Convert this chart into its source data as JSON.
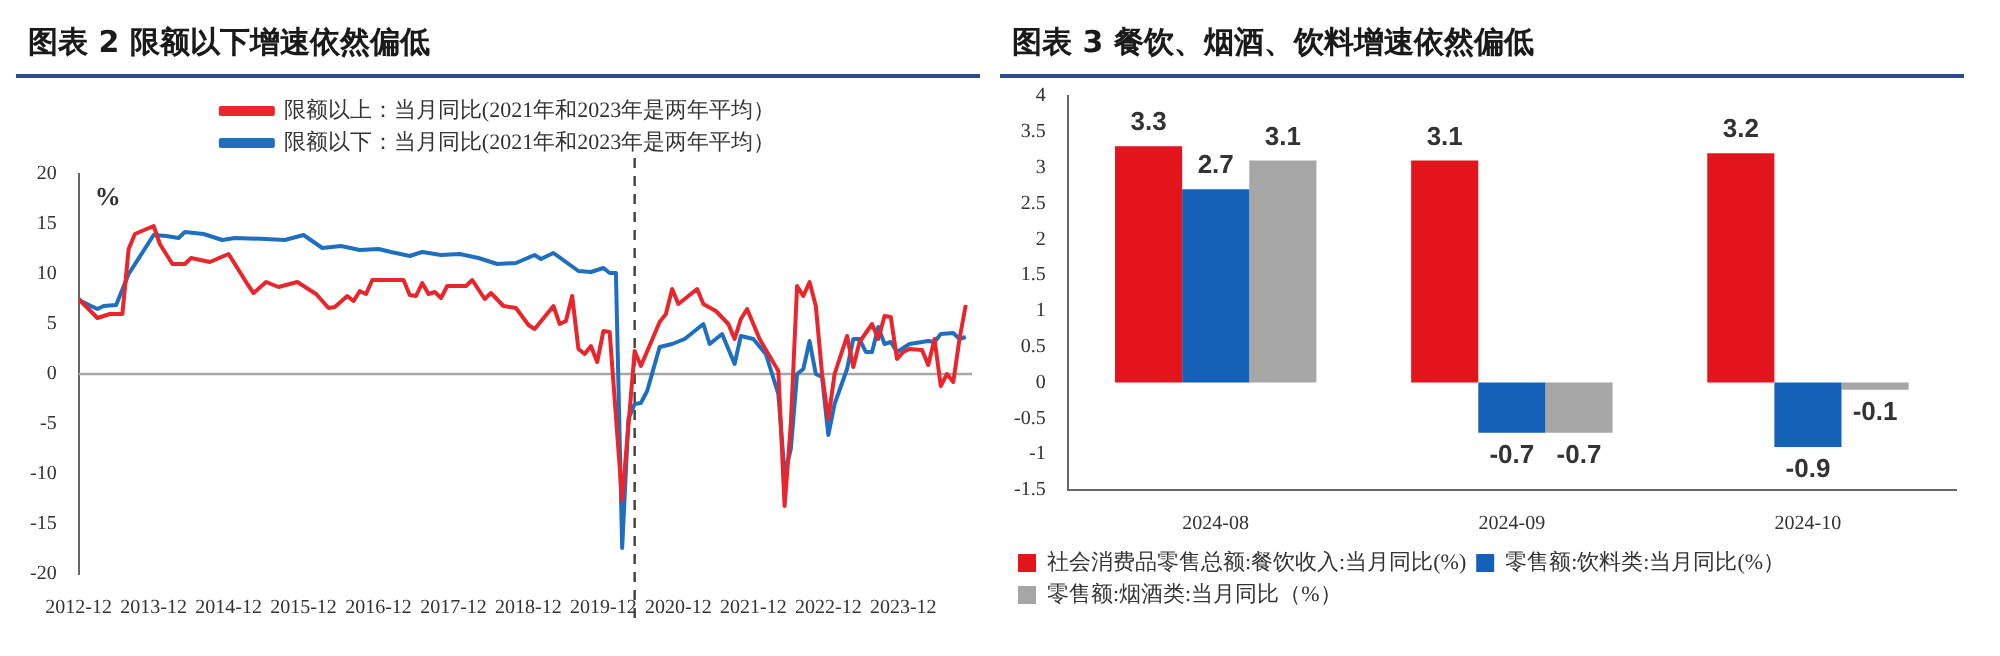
{
  "chart_data": [
    {
      "type": "line",
      "title": "图表 2  限额以下增速依然偏低",
      "ylabel": "%",
      "xlim": [
        "2012-12",
        "2024-11"
      ],
      "xticks": [
        "2012-12",
        "2013-12",
        "2014-12",
        "2015-12",
        "2016-12",
        "2017-12",
        "2018-12",
        "2019-12",
        "2020-12",
        "2021-12",
        "2022-12",
        "2023-12"
      ],
      "ylim": [
        -20,
        20
      ],
      "yticks": [
        -20,
        -15,
        -10,
        -5,
        0,
        5,
        10,
        15,
        20
      ],
      "grid": false,
      "legend": "top",
      "marker": "none",
      "line_style": "solid",
      "ref_lines": [
        {
          "axis": "y",
          "value": 0,
          "color": "#a6a6a6",
          "line_style": "solid"
        },
        {
          "axis": "x",
          "value": "2020-05",
          "color": "#404040",
          "line_style": "dashed"
        }
      ],
      "series": [
        {
          "name": "限额以上：当月同比(2021年和2023年是两年平均）",
          "color": "#e8262c",
          "x": [
            "2012-12",
            "2013-03",
            "2013-05",
            "2013-07",
            "2013-08",
            "2013-09",
            "2013-12",
            "2014-01",
            "2014-03",
            "2014-05",
            "2014-06",
            "2014-09",
            "2014-12",
            "2015-03",
            "2015-04",
            "2015-06",
            "2015-08",
            "2015-11",
            "2016-02",
            "2016-04",
            "2016-05",
            "2016-07",
            "2016-08",
            "2016-09",
            "2016-10",
            "2016-11",
            "2017-04",
            "2017-05",
            "2017-06",
            "2017-07",
            "2017-08",
            "2017-09",
            "2017-10",
            "2017-11",
            "2018-02",
            "2018-03",
            "2018-05",
            "2018-06",
            "2018-08",
            "2018-10",
            "2018-12",
            "2019-01",
            "2019-04",
            "2019-05",
            "2019-06",
            "2019-07",
            "2019-08",
            "2019-09",
            "2019-10",
            "2019-11",
            "2019-12",
            "2020-01",
            "2020-03",
            "2020-05",
            "2020-06",
            "2020-09",
            "2020-10",
            "2020-11",
            "2020-12",
            "2021-03",
            "2021-04",
            "2021-06",
            "2021-08",
            "2021-09",
            "2021-10",
            "2021-11",
            "2022-01",
            "2022-04",
            "2022-05",
            "2022-06",
            "2022-07",
            "2022-08",
            "2022-09",
            "2022-10",
            "2022-11",
            "2022-12",
            "2023-01",
            "2023-03",
            "2023-04",
            "2023-05",
            "2023-07",
            "2023-08",
            "2023-09",
            "2023-10",
            "2023-11",
            "2023-12",
            "2024-01",
            "2024-03",
            "2024-04",
            "2024-05",
            "2024-06",
            "2024-07",
            "2024-08",
            "2024-09",
            "2024-10"
          ],
          "values": [
            7.5,
            5.6,
            6.0,
            6.0,
            12.5,
            14.0,
            14.8,
            13,
            11,
            11,
            11.6,
            11.2,
            12,
            9,
            8.1,
            9.2,
            8.7,
            9.2,
            8,
            6.6,
            6.7,
            7.8,
            7.3,
            8.3,
            8,
            9.4,
            9.4,
            7.9,
            7.8,
            9.1,
            8,
            8.2,
            7.6,
            8.8,
            8.8,
            9.4,
            7.5,
            8.1,
            6.8,
            6.6,
            4.9,
            4.5,
            6.8,
            5,
            5.3,
            7.8,
            2.5,
            2,
            2.8,
            1.2,
            4.3,
            4.2,
            -12.6,
            2.3,
            0.8,
            5.2,
            6,
            8.5,
            7,
            8.5,
            7,
            6.3,
            5,
            3.5,
            5.5,
            6.5,
            3.5,
            0.3,
            -13.2,
            -5,
            8.8,
            7.8,
            9.2,
            6.8,
            0,
            -4.5,
            0,
            3.8,
            0.7,
            3.2,
            5,
            3.5,
            5.8,
            5.7,
            1.5,
            2.2,
            2.5,
            2.4,
            0.9,
            3.5,
            -1.2,
            0,
            -0.8,
            3.5,
            6.9
          ]
        },
        {
          "name": "限额以下：当月同比(2021年和2023年是两年平均）",
          "color": "#1f6fc1",
          "x": [
            "2012-12",
            "2013-03",
            "2013-04",
            "2013-06",
            "2013-08",
            "2013-12",
            "2014-02",
            "2014-04",
            "2014-05",
            "2014-08",
            "2014-11",
            "2015-01",
            "2015-06",
            "2015-09",
            "2015-12",
            "2016-03",
            "2016-06",
            "2016-09",
            "2016-12",
            "2017-02",
            "2017-05",
            "2017-07",
            "2017-10",
            "2018-01",
            "2018-04",
            "2018-07",
            "2018-10",
            "2019-01",
            "2019-02",
            "2019-04",
            "2019-08",
            "2019-10",
            "2019-12",
            "2020-01",
            "2020-02",
            "2020-03",
            "2020-04",
            "2020-05",
            "2020-06",
            "2020-07",
            "2020-09",
            "2020-11",
            "2021-01",
            "2021-03",
            "2021-04",
            "2021-05",
            "2021-07",
            "2021-08",
            "2021-09",
            "2021-10",
            "2021-12",
            "2022-02",
            "2022-04",
            "2022-05",
            "2022-06",
            "2022-07",
            "2022-08",
            "2022-09",
            "2022-10",
            "2022-11",
            "2022-12",
            "2023-01",
            "2023-03",
            "2023-04",
            "2023-05",
            "2023-06",
            "2023-07",
            "2023-08",
            "2023-09",
            "2023-10",
            "2023-11",
            "2024-01",
            "2024-04",
            "2024-05",
            "2024-06",
            "2024-08",
            "2024-09",
            "2024-10"
          ],
          "values": [
            7.4,
            6.5,
            6.8,
            6.9,
            10,
            13.9,
            13.8,
            13.6,
            14.2,
            14,
            13.4,
            13.6,
            13.5,
            13.4,
            13.9,
            12.6,
            12.8,
            12.4,
            12.5,
            12.2,
            11.8,
            12.2,
            11.9,
            12,
            11.6,
            11,
            11.1,
            11.9,
            11.5,
            12.1,
            10.3,
            10.2,
            10.6,
            10.1,
            10.1,
            -17.4,
            -4.5,
            -3,
            -2.9,
            -1.7,
            2.7,
            3,
            3.5,
            4.5,
            5,
            3,
            4,
            2.5,
            1,
            3.8,
            3.5,
            2,
            -2,
            -10,
            -7.5,
            0,
            0.5,
            3.3,
            0,
            -0.3,
            -6.1,
            -3,
            0.5,
            3.5,
            3.5,
            2.2,
            2.2,
            4.7,
            3,
            3.2,
            2.2,
            3,
            3.3,
            3.2,
            4,
            4.1,
            3.5,
            3.7
          ]
        }
      ]
    },
    {
      "type": "bar",
      "title": "图表 3  餐饮、烟酒、饮料增速依然偏低",
      "categories": [
        "2024-08",
        "2024-09",
        "2024-10"
      ],
      "ylim": [
        -1.5,
        4
      ],
      "yticks": [
        -1.5,
        -1,
        -0.5,
        0,
        0.5,
        1,
        1.5,
        2,
        2.5,
        3,
        3.5,
        4
      ],
      "grid": false,
      "legend": "bottom",
      "data_labels": true,
      "series": [
        {
          "name": "社会消费品零售总额:餐饮收入:当月同比(%)",
          "color": "#e3141b",
          "values": [
            3.3,
            3.1,
            3.2
          ]
        },
        {
          "name": "零售额:饮料类:当月同比(%）",
          "color": "#1560b8",
          "values": [
            2.7,
            -0.7,
            -0.9
          ]
        },
        {
          "name": "零售额:烟酒类:当月同比（%）",
          "color": "#a6a6a6",
          "values": [
            3.1,
            -0.7,
            -0.1
          ]
        }
      ]
    }
  ]
}
